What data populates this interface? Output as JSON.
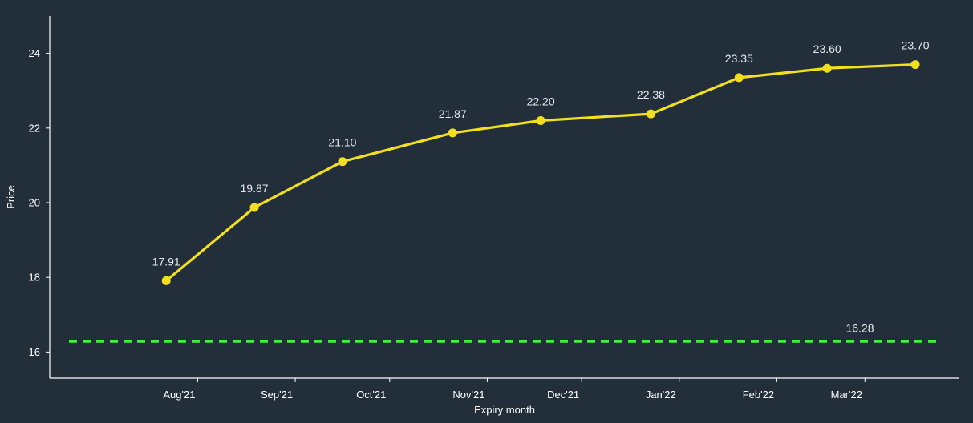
{
  "colors": {
    "background": "#232e3b",
    "axis": "#ffffff",
    "series_line": "#f2e01f",
    "reference_line": "#3ef23e",
    "label_text": "#e6e9ed"
  },
  "chart_data": {
    "type": "line",
    "xlabel": "Expiry month",
    "ylabel": "Price",
    "x_tick_labels": [
      "Aug'21",
      "Sep'21",
      "Oct'21",
      "Nov'21",
      "Dec'21",
      "Jan'22",
      "Feb'22",
      "Mar'22"
    ],
    "y_ticks": [
      16,
      18,
      20,
      22,
      24
    ],
    "ylim": [
      15.3,
      25.0
    ],
    "grid": false,
    "legend": "none",
    "series": [
      {
        "x": [
          "2021-07-22",
          "2021-08-19",
          "2021-09-16",
          "2021-10-21",
          "2021-11-18",
          "2021-12-23",
          "2022-01-20",
          "2022-02-17",
          "2022-03-17"
        ],
        "values": [
          17.91,
          19.87,
          21.1,
          21.87,
          22.2,
          22.38,
          23.35,
          23.6,
          23.7
        ],
        "labels": [
          "17.91",
          "19.87",
          "21.10",
          "21.87",
          "22.20",
          "22.38",
          "23.35",
          "23.60",
          "23.70"
        ],
        "style": "solid-with-markers"
      }
    ],
    "reference_lines": [
      {
        "value": 16.28,
        "label": "16.28",
        "style": "dashed"
      }
    ]
  }
}
